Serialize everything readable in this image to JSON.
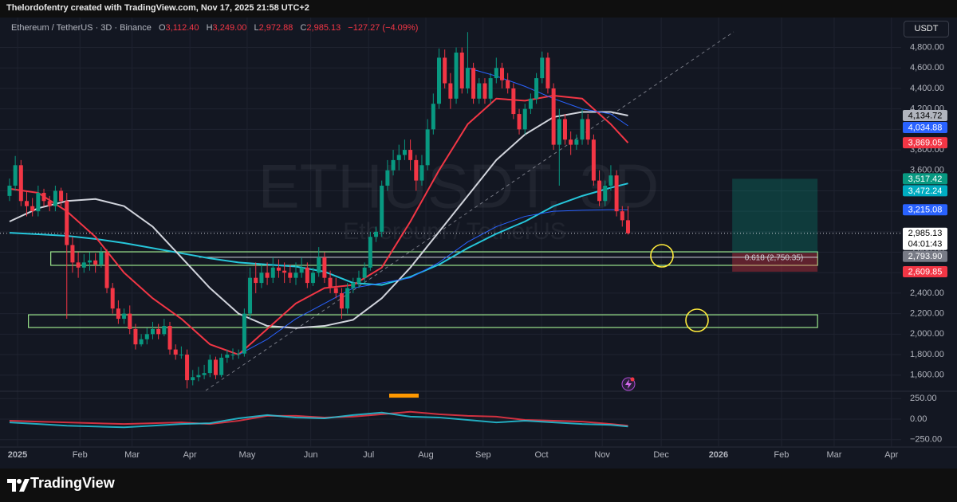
{
  "header": {
    "credit": "Thelordofentry created with TradingView.com, Nov 17, 2025 21:58 UTC+2",
    "symbol": "Ethereum / TetherUS · 3D · Binance",
    "ohlc": [
      {
        "key": "O",
        "value": "3,112.40"
      },
      {
        "key": "H",
        "value": "3,249.00"
      },
      {
        "key": "L",
        "value": "2,972.88"
      },
      {
        "key": "C",
        "value": "2,985.13"
      }
    ],
    "change": "−127.27 (−4.09%)",
    "currency": "USDT"
  },
  "footer": {
    "logo": "TradingView"
  },
  "chart_data": {
    "type": "candlestick",
    "watermark": {
      "symbol": "ETHUSDT, 3D",
      "description": "Ethereum / TetherUS"
    },
    "up_color": "#089981",
    "down_color": "#f23645",
    "grid": true,
    "xlim": [
      -0.55,
      155.7
    ],
    "xticks": [
      {
        "value": 1.4,
        "label": "2025"
      },
      {
        "value": 12.3,
        "label": "Feb"
      },
      {
        "value": 21.4,
        "label": "Mar"
      },
      {
        "value": 31.5,
        "label": "Apr"
      },
      {
        "value": 41.5,
        "label": "May"
      },
      {
        "value": 52.6,
        "label": "Jun"
      },
      {
        "value": 62.7,
        "label": "Jul"
      },
      {
        "value": 72.7,
        "label": "Aug"
      },
      {
        "value": 82.7,
        "label": "Sep"
      },
      {
        "value": 92.9,
        "label": "Oct"
      },
      {
        "value": 103.5,
        "label": "Nov"
      },
      {
        "value": 113.8,
        "label": "Dec"
      },
      {
        "value": 123.8,
        "label": "2026"
      },
      {
        "value": 134.8,
        "label": "Feb"
      },
      {
        "value": 144,
        "label": "Mar"
      },
      {
        "value": 154,
        "label": "Apr"
      }
    ],
    "ylim": [
      1450,
      5030
    ],
    "yticks": [
      {
        "value": 1600,
        "label": "1,600.00"
      },
      {
        "value": 1800,
        "label": "1,800.00"
      },
      {
        "value": 2000,
        "label": "2,000.00"
      },
      {
        "value": 2200,
        "label": "2,200.00"
      },
      {
        "value": 2400,
        "label": "2,400.00"
      },
      {
        "value": 2600,
        "label": "2,600.00"
      },
      {
        "value": 2800,
        "label": "2,800.00"
      },
      {
        "value": 3000,
        "label": "3,000.00"
      },
      {
        "value": 3200,
        "label": "3,200.00"
      },
      {
        "value": 3400,
        "label": "3,400.00"
      },
      {
        "value": 3600,
        "label": "3,600.00"
      },
      {
        "value": 3800,
        "label": "3,800.00"
      },
      {
        "value": 4000,
        "label": "4,000.00"
      },
      {
        "value": 4200,
        "label": "4,200.00"
      },
      {
        "value": 4400,
        "label": "4,400.00"
      },
      {
        "value": 4600,
        "label": "4,600.00"
      },
      {
        "value": 4800,
        "label": "4,800.00"
      }
    ],
    "candles": {
      "x": [
        0,
        1,
        2,
        3,
        4,
        5,
        6,
        7,
        8,
        9,
        10,
        11,
        12,
        13,
        14,
        15,
        16,
        17,
        18,
        19,
        20,
        21,
        22,
        23,
        24,
        25,
        26,
        27,
        28,
        29,
        30,
        31,
        32,
        33,
        34,
        35,
        36,
        37,
        38,
        39,
        40,
        41,
        42,
        43,
        44,
        45,
        46,
        47,
        48,
        49,
        50,
        51,
        52,
        53,
        54,
        55,
        56,
        57,
        58,
        59,
        60,
        61,
        62,
        63,
        64,
        65,
        66,
        67,
        68,
        69,
        70,
        71,
        72,
        73,
        74,
        75,
        76,
        77,
        78,
        79,
        80,
        81,
        82,
        83,
        84,
        85,
        86,
        87,
        88,
        89,
        90,
        91,
        92,
        93,
        94,
        95,
        96,
        97,
        98,
        99,
        100,
        101,
        102,
        103,
        104,
        105,
        106,
        107,
        108
      ],
      "open": [
        3350,
        3450,
        3650,
        3300,
        3250,
        3200,
        3380,
        3300,
        3250,
        3400,
        3300,
        2870,
        2700,
        2650,
        2700,
        2720,
        2680,
        2800,
        2450,
        2250,
        2150,
        2200,
        2050,
        1900,
        1950,
        2000,
        2050,
        2000,
        2080,
        1850,
        1800,
        1800,
        1550,
        1580,
        1600,
        1620,
        1750,
        1600,
        1770,
        1800,
        1800,
        1810,
        2200,
        2550,
        2500,
        2600,
        2550,
        2650,
        2620,
        2600,
        2550,
        2600,
        2650,
        2500,
        2600,
        2750,
        2550,
        2450,
        2400,
        2250,
        2450,
        2500,
        2550,
        2650,
        2950,
        3000,
        3450,
        3600,
        3700,
        3750,
        3800,
        3700,
        3500,
        3650,
        4000,
        4250,
        4700,
        4450,
        4300,
        4750,
        4400,
        4600,
        4300,
        4450,
        4300,
        4500,
        4600,
        4480,
        4400,
        4150,
        4000,
        4200,
        4300,
        4500,
        4700,
        4400,
        3850,
        4100,
        3900,
        3850,
        3900,
        4100,
        3900,
        3500,
        3300,
        3450,
        3550,
        3200,
        3112.4
      ],
      "high": [
        3520,
        3740,
        3700,
        3400,
        3330,
        3450,
        3420,
        3350,
        3450,
        3430,
        3380,
        2950,
        2800,
        2780,
        2800,
        2790,
        2850,
        2830,
        2500,
        2330,
        2250,
        2280,
        2100,
        2000,
        2060,
        2120,
        2100,
        2150,
        2120,
        1900,
        1880,
        1850,
        1650,
        1680,
        1700,
        1800,
        1780,
        1810,
        1850,
        1860,
        1850,
        2250,
        2650,
        2700,
        2680,
        2700,
        2750,
        2730,
        2700,
        2680,
        2700,
        2750,
        2700,
        2650,
        2850,
        2800,
        2620,
        2550,
        2450,
        2500,
        2550,
        2620,
        2700,
        3000,
        3050,
        3500,
        3700,
        3800,
        3850,
        3900,
        3900,
        3750,
        3750,
        4100,
        4350,
        4790,
        4780,
        4550,
        4800,
        4800,
        4950,
        4650,
        4500,
        4500,
        4550,
        4700,
        4650,
        4550,
        4450,
        4200,
        4250,
        4350,
        4550,
        4760,
        4750,
        4450,
        4200,
        4150,
        3980,
        3950,
        4200,
        4150,
        3950,
        3600,
        3500,
        3650,
        3600,
        3250,
        3249
      ],
      "low": [
        3300,
        3400,
        3250,
        3150,
        3150,
        3150,
        3250,
        3200,
        3200,
        3250,
        2150,
        2600,
        2550,
        2600,
        2620,
        2600,
        2650,
        2400,
        2200,
        2100,
        2100,
        2000,
        1850,
        1880,
        1900,
        1950,
        1950,
        1980,
        1800,
        1750,
        1760,
        1470,
        1500,
        1540,
        1560,
        1580,
        1560,
        1580,
        1720,
        1750,
        1760,
        1780,
        2150,
        2400,
        2450,
        2480,
        2500,
        2550,
        2500,
        2500,
        2480,
        2550,
        2450,
        2470,
        2560,
        2500,
        2400,
        2350,
        2150,
        2200,
        2400,
        2450,
        2500,
        2620,
        2900,
        2950,
        3400,
        3550,
        3600,
        3700,
        3600,
        3400,
        3450,
        3600,
        3950,
        4200,
        4400,
        4200,
        4250,
        4350,
        4350,
        4250,
        4250,
        4250,
        4250,
        4450,
        4400,
        4350,
        4100,
        3950,
        3950,
        4150,
        4250,
        4450,
        4350,
        3800,
        3450,
        3850,
        3750,
        3800,
        3850,
        3850,
        3450,
        3250,
        3250,
        3400,
        3150,
        3050,
        2972.88
      ],
      "close": [
        3450,
        3650,
        3300,
        3250,
        3200,
        3380,
        3300,
        3250,
        3400,
        3300,
        2870,
        2700,
        2650,
        2700,
        2720,
        2680,
        2800,
        2450,
        2250,
        2150,
        2200,
        2050,
        1900,
        1950,
        2000,
        2050,
        2000,
        2080,
        1850,
        1800,
        1800,
        1550,
        1580,
        1600,
        1620,
        1750,
        1600,
        1770,
        1800,
        1800,
        1810,
        2200,
        2550,
        2500,
        2600,
        2550,
        2650,
        2620,
        2600,
        2550,
        2600,
        2650,
        2500,
        2600,
        2750,
        2550,
        2450,
        2400,
        2250,
        2450,
        2500,
        2550,
        2650,
        2950,
        3000,
        3450,
        3600,
        3700,
        3750,
        3800,
        3700,
        3500,
        3650,
        4000,
        4250,
        4700,
        4450,
        4300,
        4750,
        4400,
        4600,
        4300,
        4450,
        4300,
        4500,
        4600,
        4480,
        4400,
        4150,
        4000,
        4200,
        4300,
        4500,
        4700,
        4400,
        3850,
        4100,
        3900,
        3850,
        3900,
        4100,
        3900,
        3500,
        3300,
        3450,
        3550,
        3200,
        3112.4,
        2985.13
      ]
    },
    "lines": [
      {
        "color": "#26c6da",
        "width": 2,
        "x": [
          0,
          5,
          10,
          15,
          20,
          25,
          30,
          35,
          40,
          45,
          50,
          55,
          60,
          65,
          70,
          75,
          80,
          85,
          90,
          95,
          100,
          105,
          108
        ],
        "values": [
          2990,
          2975,
          2960,
          2930,
          2890,
          2840,
          2790,
          2740,
          2700,
          2680,
          2660,
          2610,
          2500,
          2480,
          2560,
          2680,
          2840,
          2980,
          3100,
          3250,
          3350,
          3430,
          3472.24
        ]
      },
      {
        "color": "#d1d4dc",
        "width": 2,
        "x": [
          0,
          5,
          10,
          15,
          20,
          25,
          30,
          35,
          40,
          45,
          50,
          55,
          60,
          65,
          70,
          75,
          80,
          85,
          90,
          95,
          100,
          105,
          108
        ],
        "values": [
          3100,
          3230,
          3300,
          3320,
          3250,
          3050,
          2750,
          2450,
          2200,
          2080,
          2060,
          2080,
          2140,
          2350,
          2650,
          3000,
          3350,
          3700,
          3950,
          4120,
          4170,
          4170,
          4134.72
        ]
      },
      {
        "color": "#f23645",
        "width": 2,
        "x": [
          0,
          5,
          10,
          15,
          20,
          25,
          30,
          35,
          40,
          45,
          50,
          55,
          60,
          65,
          70,
          75,
          80,
          85,
          90,
          95,
          100,
          105,
          108
        ],
        "values": [
          3420,
          3380,
          3200,
          2950,
          2600,
          2350,
          2150,
          1900,
          1800,
          2050,
          2300,
          2450,
          2480,
          2650,
          3100,
          3600,
          4050,
          4300,
          4280,
          4330,
          4300,
          4050,
          3869.05
        ]
      },
      {
        "color": "#2962ff",
        "width": 1,
        "x": [
          40,
          45,
          50,
          55,
          60,
          65,
          70,
          75,
          80,
          85,
          90,
          95,
          100,
          105,
          108
        ],
        "values": [
          1800,
          1950,
          2150,
          2300,
          2450,
          2500,
          2550,
          2700,
          2900,
          3050,
          3150,
          3200,
          3210,
          3215,
          3215.08
        ]
      },
      {
        "color": "#2962ff",
        "width": 1,
        "x": [
          80,
          85,
          90,
          95,
          100,
          105,
          108
        ],
        "values": [
          4600,
          4520,
          4420,
          4300,
          4200,
          4150,
          4034.88
        ]
      }
    ],
    "zones": [
      {
        "top": 2804,
        "bottom": 2672,
        "x": [
          7.2,
          141.1
        ],
        "color": "#9be58c"
      },
      {
        "top": 2189,
        "bottom": 2065,
        "x": [
          3.3,
          141.1
        ],
        "color": "#9be58c"
      }
    ],
    "position": {
      "x": [
        126.2,
        141.1
      ],
      "target": 3517.42,
      "entry": 2793.9,
      "stop": 2609.85
    },
    "fib": {
      "value": 2750.35,
      "label": "0.618 (2,750.35)",
      "x": [
        33.1,
        141.1
      ]
    },
    "price_labels": [
      {
        "value": 4134.72,
        "label": "4,134.72",
        "color": "#b2b5be",
        "text_color": "#000000"
      },
      {
        "value": 4034.88,
        "label": "4,034.88",
        "color": "#2962ff",
        "text_color": "#ffffff"
      },
      {
        "value": 3869.05,
        "label": "3,869.05",
        "color": "#f23645",
        "text_color": "#ffffff"
      },
      {
        "value": 3517.42,
        "label": "3,517.42",
        "color": "#089981",
        "text_color": "#ffffff"
      },
      {
        "value": 3472.24,
        "label": "3,472.24",
        "color": "#00acc1",
        "text_color": "#ffffff"
      },
      {
        "value": 3215.08,
        "label": "3,215.08",
        "color": "#2962ff",
        "text_color": "#ffffff"
      },
      {
        "value": 2985.13,
        "label": "2,985.13",
        "countdown": "04:01:43",
        "color": "#ffffff",
        "text_color": "#000000"
      },
      {
        "value": 2793.9,
        "label": "2,793.90",
        "color": "#787b86",
        "text_color": "#ffffff"
      },
      {
        "value": 2609.85,
        "label": "2,609.85",
        "color": "#f23645",
        "text_color": "#ffffff"
      }
    ],
    "last_price": 2985.13,
    "indicator": {
      "ylim": [
        -330,
        330
      ],
      "yticks": [
        {
          "value": 250,
          "label": "250.00"
        },
        {
          "value": 0,
          "label": "0.00"
        },
        {
          "value": -250,
          "label": "−250.00"
        }
      ],
      "series": [
        {
          "color": "#f23645",
          "x": [
            0,
            5,
            10,
            15,
            20,
            25,
            30,
            35,
            40,
            45,
            50,
            55,
            60,
            65,
            70,
            75,
            80,
            85,
            90,
            95,
            100,
            105,
            108
          ],
          "values": [
            -20,
            -30,
            -40,
            -50,
            -60,
            -50,
            -40,
            -60,
            -20,
            40,
            40,
            20,
            30,
            60,
            90,
            60,
            40,
            30,
            -10,
            -20,
            -30,
            -60,
            -80
          ]
        },
        {
          "color": "#26c6da",
          "x": [
            0,
            5,
            10,
            15,
            20,
            25,
            30,
            35,
            40,
            45,
            50,
            55,
            60,
            65,
            70,
            75,
            80,
            85,
            90,
            95,
            100,
            105,
            108
          ],
          "values": [
            -40,
            -60,
            -80,
            -90,
            -100,
            -80,
            -60,
            -50,
            10,
            50,
            20,
            10,
            50,
            80,
            30,
            20,
            -10,
            -40,
            -20,
            -40,
            -60,
            -70,
            -90
          ]
        }
      ]
    }
  }
}
